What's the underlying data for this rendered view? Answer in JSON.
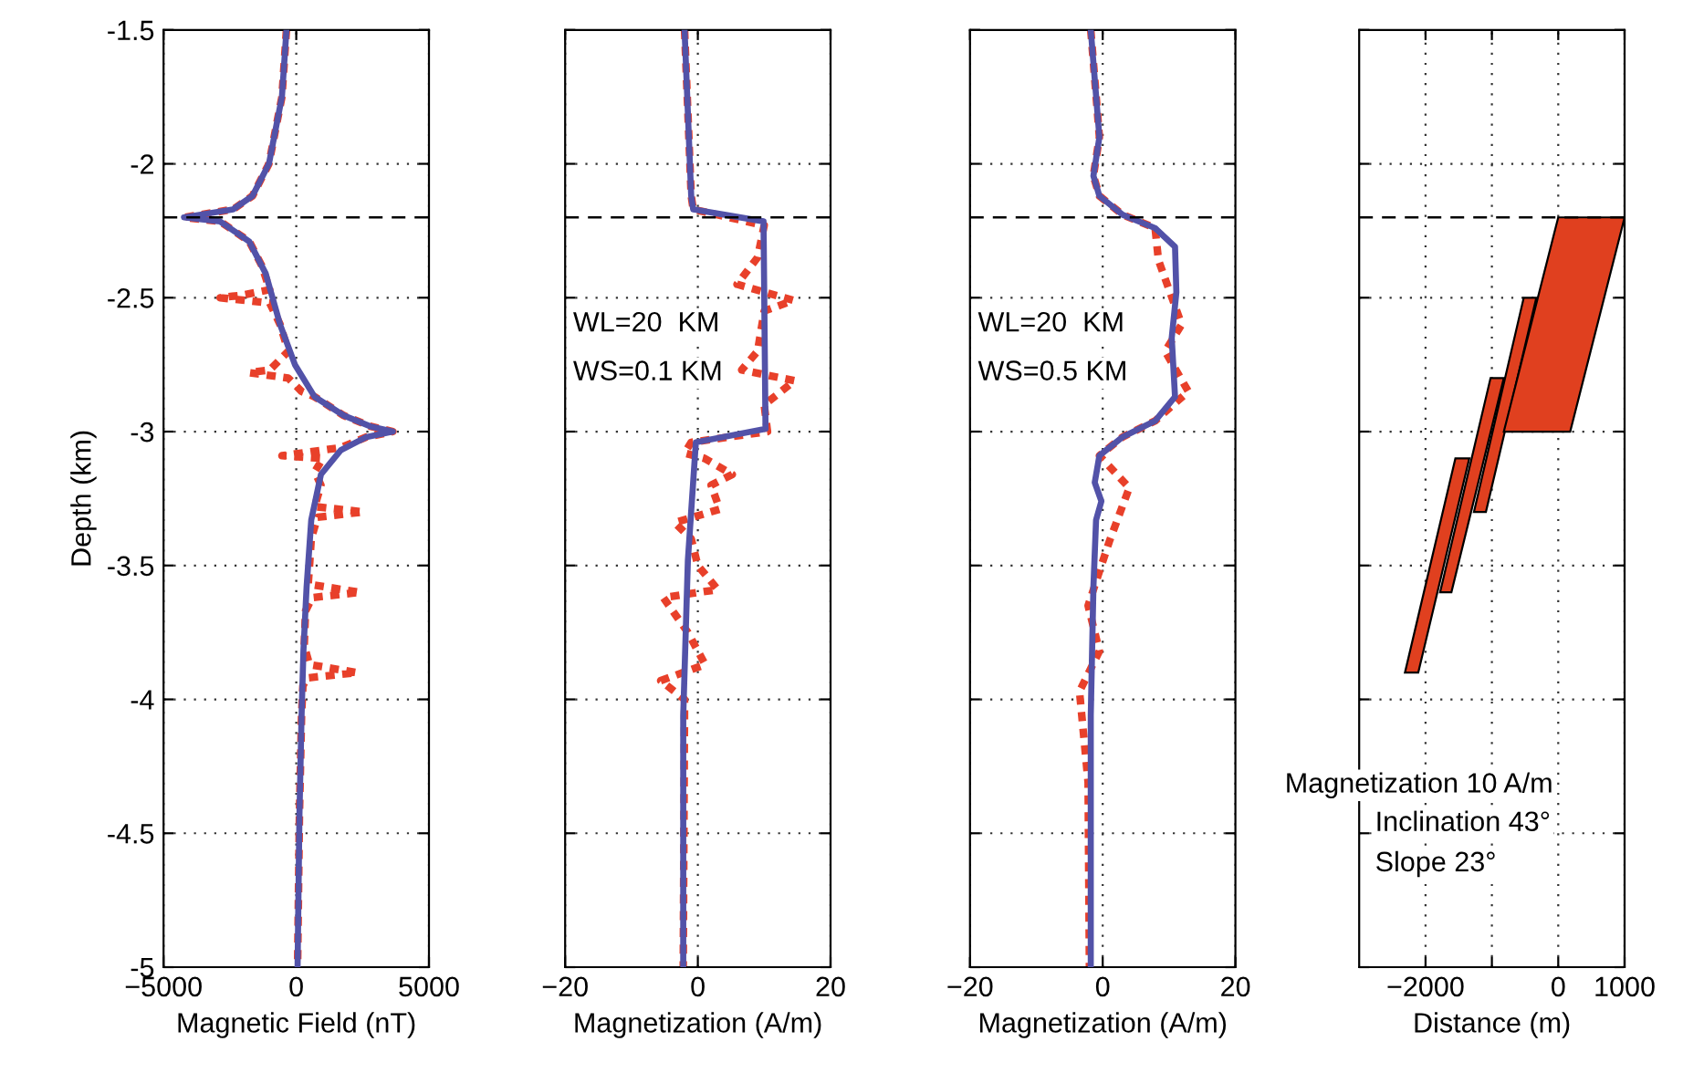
{
  "chart_data": [
    {
      "type": "line",
      "xlabel": "Magnetic Field (nT)",
      "ylabel": "Depth (km)",
      "xlim": [
        -5000,
        5000
      ],
      "xticks": [
        {
          "value": -5000,
          "label": "−5000"
        },
        0,
        5000
      ],
      "ylim": [
        -5,
        -1.5
      ],
      "yticks": [
        -5,
        -4.5,
        -4,
        -3.5,
        -3,
        -2.5,
        -2,
        -1.5
      ],
      "grid": true,
      "ref_lines": [
        {
          "axis": "y",
          "value": -2.2,
          "color": "#000000",
          "line_style": "dashed"
        }
      ],
      "series": [
        {
          "color": "#e8402a",
          "line_style": "dotted",
          "x": [
            -369,
            -540,
            -1030,
            -1650,
            -2380,
            -4230,
            -2870,
            -1770,
            -1300,
            -1000,
            -2000,
            -2870,
            -1000,
            -800,
            -610,
            -300,
            -1000,
            -1770,
            -300,
            200,
            690,
            1790,
            2780,
            3640,
            2650,
            1670,
            -540,
            1000,
            700,
            930,
            700,
            2530,
            800,
            565,
            500,
            450,
            2410,
            600,
            350,
            300,
            500,
            2290,
            400,
            250,
            200,
            120,
            50
          ],
          "values": [
            -1.5,
            -1.75,
            -2.0,
            -2.12,
            -2.17,
            -2.2,
            -2.215,
            -2.29,
            -2.38,
            -2.47,
            -2.49,
            -2.5,
            -2.52,
            -2.56,
            -2.6,
            -2.7,
            -2.77,
            -2.78,
            -2.8,
            -2.85,
            -2.87,
            -2.94,
            -2.98,
            -3.0,
            -3.02,
            -3.06,
            -3.09,
            -3.1,
            -3.15,
            -3.2,
            -3.28,
            -3.3,
            -3.32,
            -3.4,
            -3.5,
            -3.57,
            -3.6,
            -3.62,
            -3.67,
            -3.8,
            -3.87,
            -3.9,
            -3.92,
            -3.95,
            -4.06,
            -4.43,
            -5.0
          ]
        },
        {
          "color": "#5252a8",
          "line_style": "solid",
          "x": [
            -369,
            -540,
            -1030,
            -1650,
            -2380,
            -4230,
            -2870,
            -1770,
            -1150,
            -610,
            -50,
            690,
            1790,
            2780,
            3640,
            2650,
            1670,
            930,
            565,
            390,
            270,
            200,
            120,
            50
          ],
          "values": [
            -1.5,
            -1.75,
            -2.0,
            -2.12,
            -2.17,
            -2.2,
            -2.215,
            -2.29,
            -2.41,
            -2.6,
            -2.75,
            -2.87,
            -2.94,
            -2.98,
            -3.0,
            -3.02,
            -3.07,
            -3.16,
            -3.33,
            -3.58,
            -3.82,
            -4.06,
            -4.43,
            -5.0
          ]
        }
      ]
    },
    {
      "type": "line",
      "xlabel": "Magnetization (A/m)",
      "xlim": [
        -20,
        20
      ],
      "xticks": [
        {
          "value": -20,
          "label": "−20"
        },
        0,
        20
      ],
      "ylim": [
        -5,
        -1.5
      ],
      "yticks": [
        -5,
        -4.5,
        -4,
        -3.5,
        -3,
        -2.5,
        -2,
        -1.5
      ],
      "tick_labels": "x",
      "grid": true,
      "ref_lines": [
        {
          "axis": "y",
          "value": -2.2,
          "color": "#000000",
          "line_style": "dashed"
        }
      ],
      "annotations": [
        "WL=20  KM",
        "WS=0.1 KM"
      ],
      "series": [
        {
          "color": "#e8402a",
          "line_style": "dotted",
          "x": [
            -2.0,
            -1.0,
            -0.7,
            10,
            9,
            5.9,
            14.4,
            10,
            9,
            6.6,
            14.6,
            10,
            10.5,
            -1,
            -2,
            1,
            5.2,
            2,
            3.3,
            -3.5,
            -1,
            0,
            3.0,
            -5.2,
            -1.5,
            1.1,
            -5.6,
            -2,
            -2.2
          ],
          "values": [
            -1.5,
            -2.12,
            -2.17,
            -2.23,
            -2.35,
            -2.45,
            -2.51,
            -2.55,
            -2.7,
            -2.77,
            -2.81,
            -2.9,
            -3.0,
            -3.04,
            -3.08,
            -3.1,
            -3.16,
            -3.2,
            -3.29,
            -3.34,
            -3.4,
            -3.5,
            -3.59,
            -3.62,
            -3.75,
            -3.87,
            -3.93,
            -4.0,
            -5.0
          ]
        },
        {
          "color": "#5252a8",
          "line_style": "solid",
          "x": [
            -2.0,
            -1.0,
            -0.7,
            9.9,
            10.2,
            -0.3,
            -1.5,
            -2.2,
            -2.2
          ],
          "values": [
            -1.5,
            -2.12,
            -2.17,
            -2.215,
            -2.99,
            -3.04,
            -3.48,
            -4.06,
            -5.0
          ]
        }
      ]
    },
    {
      "type": "line",
      "xlabel": "Magnetization (A/m)",
      "xlim": [
        -20,
        20
      ],
      "xticks": [
        {
          "value": -20,
          "label": "−20"
        },
        0,
        20
      ],
      "ylim": [
        -5,
        -1.5
      ],
      "yticks": [
        -5,
        -4.5,
        -4,
        -3.5,
        -3,
        -2.5,
        -2,
        -1.5
      ],
      "tick_labels": "x",
      "grid": true,
      "ref_lines": [
        {
          "axis": "y",
          "value": -2.2,
          "color": "#000000",
          "line_style": "dashed"
        }
      ],
      "annotations": [
        "WL=20  KM",
        "WS=0.5 KM"
      ],
      "series": [
        {
          "color": "#e8402a",
          "line_style": "dotted",
          "x": [
            -1.8,
            -0.5,
            -1.4,
            -0.5,
            3.0,
            7.9,
            8.4,
            11.9,
            9.4,
            12.9,
            7.9,
            3.0,
            -0.5,
            4.0,
            1.0,
            -2.2,
            -0.5,
            -3.5,
            -2.2,
            -2.0
          ],
          "values": [
            -1.5,
            -1.9,
            -2.045,
            -2.12,
            -2.19,
            -2.24,
            -2.36,
            -2.6,
            -2.7,
            -2.85,
            -2.96,
            -3.02,
            -3.09,
            -3.21,
            -3.41,
            -3.65,
            -3.82,
            -3.97,
            -4.31,
            -5.0
          ]
        },
        {
          "color": "#5252a8",
          "line_style": "solid",
          "x": [
            -1.8,
            -0.5,
            -1.4,
            -0.5,
            3.0,
            7.9,
            10.9,
            11.1,
            10.4,
            10.9,
            7.9,
            3.0,
            -0.5,
            -1.2,
            -0.2,
            -1.0,
            -1.4,
            -1.8,
            -1.8
          ],
          "values": [
            -1.5,
            -1.9,
            -2.045,
            -2.12,
            -2.19,
            -2.24,
            -2.31,
            -2.48,
            -2.65,
            -2.87,
            -2.96,
            -3.02,
            -3.09,
            -3.19,
            -3.26,
            -3.33,
            -3.58,
            -4.06,
            -5.0
          ]
        }
      ]
    },
    {
      "type": "area",
      "xlabel": "Distance (m)",
      "xlim": [
        -3000,
        1000
      ],
      "xticks": [
        {
          "value": -2000,
          "label": "−2000"
        },
        {
          "value": -1000,
          "label": null
        },
        0,
        1000
      ],
      "ylim": [
        -5,
        -1.5
      ],
      "yticks": [
        -5,
        -4.5,
        -4,
        -3.5,
        -3,
        -2.5,
        -2,
        -1.5
      ],
      "tick_labels": "x",
      "grid": true,
      "ref_lines": [
        {
          "axis": "y",
          "value": -2.2,
          "color": "#000000",
          "line_style": "dashed"
        }
      ],
      "annotations": [
        "Magnetization 10 A/m",
        "Inclination 43°",
        "Slope 23°"
      ],
      "series": [
        {
          "color": "#e0401f",
          "x": [
            -1550,
            -1340,
            -2110,
            -2310,
            -1550
          ],
          "values": [
            -3.1,
            -3.1,
            -3.9,
            -3.9,
            -3.1
          ]
        },
        {
          "color": "#e0401f",
          "x": [
            -1020,
            -820,
            -1610,
            -1780,
            -1020
          ],
          "values": [
            -2.8,
            -2.8,
            -3.6,
            -3.6,
            -2.8
          ]
        },
        {
          "color": "#e0401f",
          "x": [
            -520,
            -330,
            -1090,
            -1270,
            -520
          ],
          "values": [
            -2.5,
            -2.5,
            -3.3,
            -3.3,
            -2.5
          ]
        },
        {
          "color": "#e0401f",
          "x": [
            0,
            1000,
            180,
            -820,
            0
          ],
          "values": [
            -2.2,
            -2.2,
            -3.0,
            -3.0,
            -2.2
          ]
        }
      ]
    }
  ]
}
